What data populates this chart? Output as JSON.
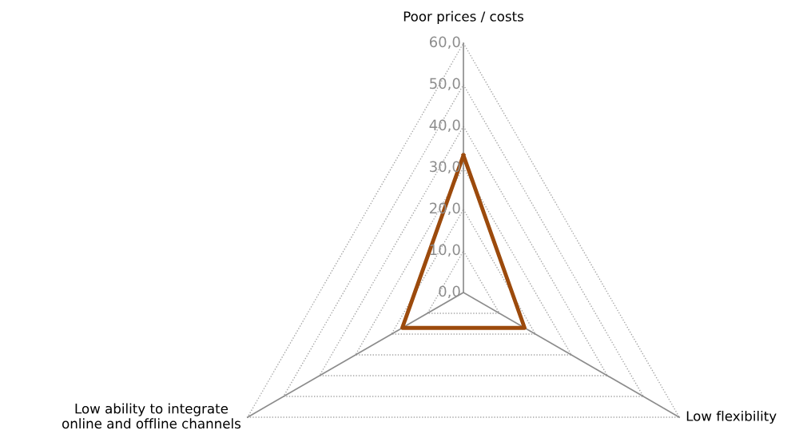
{
  "chart_data": {
    "type": "radar",
    "categories": [
      "Poor prices / costs",
      "Low flexibility",
      "Low ability to integrate\nonline and offline channels"
    ],
    "series": [
      {
        "color": "#9c4a0c",
        "values": [
          33,
          17,
          17
        ]
      }
    ],
    "ylim": [
      0,
      60
    ],
    "yticks": [
      {
        "value": 0,
        "label": "0,0"
      },
      {
        "value": 10,
        "label": "10,0"
      },
      {
        "value": 20,
        "label": "20,0"
      },
      {
        "value": 30,
        "label": "30,0"
      },
      {
        "value": 40,
        "label": "40,0"
      },
      {
        "value": 50,
        "label": "50,0"
      },
      {
        "value": 60,
        "label": "60,0"
      }
    ],
    "grid": true,
    "legend": false
  }
}
